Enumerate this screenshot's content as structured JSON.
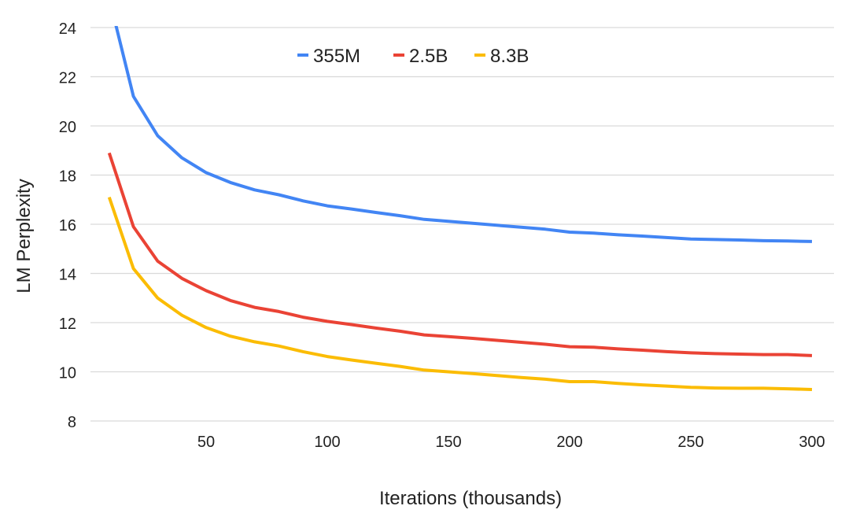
{
  "chart_data": {
    "type": "line",
    "title": "",
    "xlabel": "Iterations (thousands)",
    "ylabel": "LM Perplexity",
    "xlim": [
      0,
      305
    ],
    "ylim": [
      8,
      24
    ],
    "xticks": [
      50,
      100,
      150,
      200,
      250,
      300
    ],
    "yticks": [
      8,
      10,
      12,
      14,
      16,
      18,
      20,
      22,
      24
    ],
    "grid": "horizontal",
    "legend_position": "top-center",
    "x": [
      10,
      20,
      30,
      40,
      50,
      60,
      70,
      80,
      90,
      100,
      110,
      120,
      130,
      140,
      150,
      160,
      170,
      180,
      190,
      200,
      210,
      220,
      230,
      240,
      250,
      260,
      270,
      280,
      290,
      300
    ],
    "series": [
      {
        "name": "355M",
        "color": "#4285F4",
        "values": [
          25.2,
          21.2,
          19.6,
          18.7,
          18.1,
          17.7,
          17.4,
          17.2,
          16.95,
          16.75,
          16.62,
          16.48,
          16.35,
          16.2,
          16.12,
          16.04,
          15.96,
          15.88,
          15.8,
          15.68,
          15.64,
          15.57,
          15.52,
          15.46,
          15.4,
          15.38,
          15.36,
          15.33,
          15.32,
          15.3
        ]
      },
      {
        "name": "2.5B",
        "color": "#EA4335",
        "values": [
          18.9,
          15.9,
          14.5,
          13.8,
          13.3,
          12.9,
          12.62,
          12.45,
          12.22,
          12.05,
          11.92,
          11.78,
          11.65,
          11.5,
          11.43,
          11.36,
          11.28,
          11.2,
          11.12,
          11.02,
          11.0,
          10.93,
          10.88,
          10.82,
          10.77,
          10.74,
          10.72,
          10.7,
          10.7,
          10.66
        ]
      },
      {
        "name": "8.3B",
        "color": "#FBBC04",
        "values": [
          17.1,
          14.2,
          13.0,
          12.3,
          11.8,
          11.45,
          11.22,
          11.05,
          10.82,
          10.62,
          10.48,
          10.35,
          10.22,
          10.07,
          10.0,
          9.93,
          9.85,
          9.77,
          9.7,
          9.6,
          9.6,
          9.53,
          9.47,
          9.42,
          9.37,
          9.34,
          9.33,
          9.33,
          9.31,
          9.28
        ]
      }
    ]
  }
}
